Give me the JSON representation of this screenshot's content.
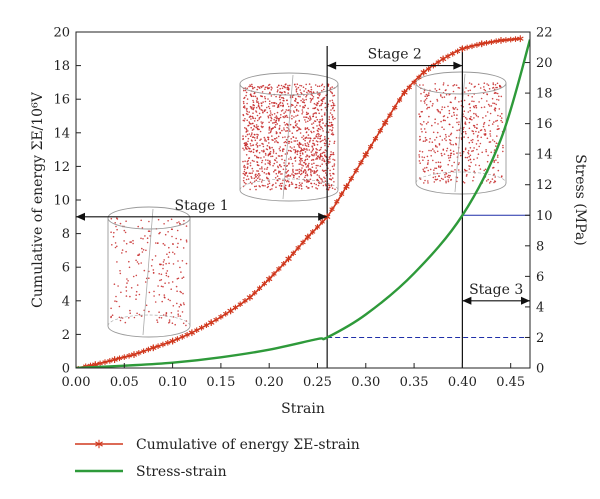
{
  "chart_data": {
    "type": "line",
    "title": "",
    "xlabel": "Strain",
    "ylabel_left": "Cumulative of energy ΣE/10⁶V",
    "ylabel_right": "Stress (MPa)",
    "xlim": [
      0,
      0.47
    ],
    "ylim_left": [
      0,
      20
    ],
    "ylim_right": [
      0,
      22
    ],
    "x_ticks": [
      "0.00",
      "0.05",
      "0.10",
      "0.15",
      "0.20",
      "0.25",
      "0.30",
      "0.35",
      "0.40",
      "0.45"
    ],
    "y_ticks_left": [
      "0",
      "2",
      "4",
      "6",
      "8",
      "10",
      "12",
      "14",
      "16",
      "18",
      "20"
    ],
    "y_ticks_right": [
      "0",
      "2",
      "4",
      "6",
      "8",
      "10",
      "12",
      "14",
      "16",
      "18",
      "20",
      "22"
    ],
    "grid": false,
    "legend_position": "bottom",
    "series": [
      {
        "name": "Cumulative of energy ΣE-strain",
        "axis": "left",
        "color": "#d0381e",
        "marker": "asterisk",
        "x": [
          0,
          0.02,
          0.04,
          0.06,
          0.08,
          0.1,
          0.12,
          0.14,
          0.16,
          0.18,
          0.2,
          0.22,
          0.24,
          0.26,
          0.28,
          0.3,
          0.32,
          0.34,
          0.36,
          0.38,
          0.4,
          0.42,
          0.44,
          0.46
        ],
        "y": [
          0,
          0.2,
          0.5,
          0.8,
          1.2,
          1.6,
          2.1,
          2.7,
          3.4,
          4.2,
          5.3,
          6.5,
          7.8,
          9.0,
          10.8,
          12.7,
          14.6,
          16.4,
          17.6,
          18.4,
          19.0,
          19.3,
          19.5,
          19.6
        ]
      },
      {
        "name": "Stress-strain",
        "axis": "right",
        "color": "#2e9a3a",
        "x": [
          0,
          0.05,
          0.1,
          0.15,
          0.2,
          0.25,
          0.26,
          0.3,
          0.35,
          0.4,
          0.44,
          0.47
        ],
        "y": [
          0,
          0.15,
          0.35,
          0.7,
          1.2,
          1.9,
          2.0,
          3.5,
          6.2,
          10.0,
          15.0,
          21.5
        ]
      }
    ],
    "vertical_lines_x": [
      0.26,
      0.4
    ],
    "reference_lines": [
      {
        "axis": "right",
        "y": 2,
        "x_start": 0.26,
        "x_end": 0.47,
        "style": "dashed"
      },
      {
        "axis": "right",
        "y": 10,
        "x_start": 0.4,
        "x_end": 0.47,
        "style": "solid"
      }
    ],
    "stages": [
      {
        "label": "Stage 1",
        "x_start": 0.0,
        "x_end": 0.26,
        "y_left": 9
      },
      {
        "label": "Stage 2",
        "x_start": 0.26,
        "x_end": 0.4,
        "y_left": 18
      },
      {
        "label": "Stage 3",
        "x_start": 0.4,
        "x_end": 0.47,
        "y_left": 4
      }
    ],
    "specimens": [
      {
        "stage": "Stage 1",
        "density": "sparse"
      },
      {
        "stage": "Stage 2",
        "density": "dense"
      },
      {
        "stage": "Stage 3",
        "density": "medium"
      }
    ]
  }
}
